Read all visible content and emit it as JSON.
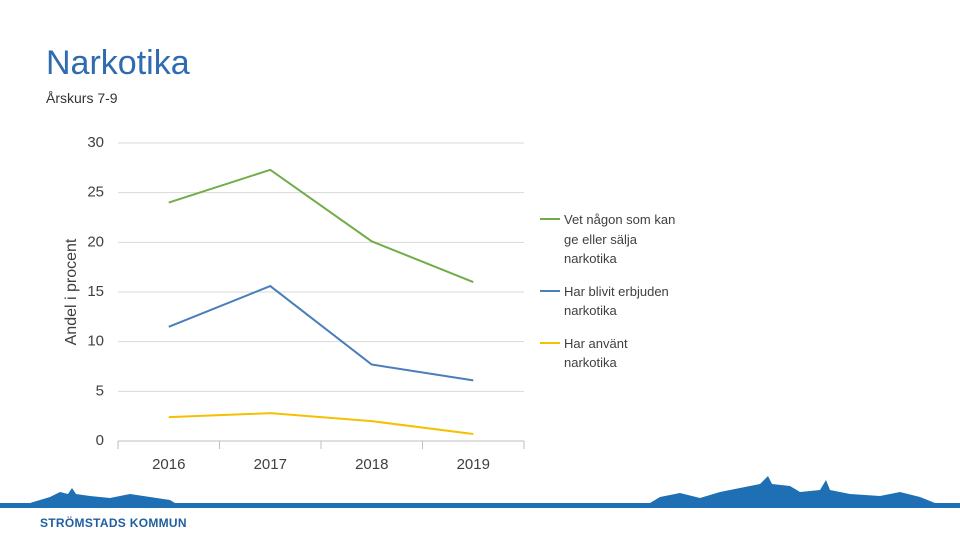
{
  "chart_data": {
    "type": "line",
    "title": "Narkotika",
    "subtitle": "Årskurs 7-9",
    "y_label": "Andel i procent",
    "categories": [
      "2016",
      "2017",
      "2018",
      "2019"
    ],
    "series": [
      {
        "name": "Vet någon som kan ge eller sälja narkotika",
        "color": "#70ad47",
        "values": [
          24.0,
          27.3,
          20.1,
          16.0
        ]
      },
      {
        "name": "Har blivit erbjuden narkotika",
        "color": "#4a7ebb",
        "values": [
          11.5,
          15.6,
          7.7,
          6.1
        ]
      },
      {
        "name": "Har använt narkotika",
        "color": "#f5c000",
        "values": [
          2.4,
          2.8,
          2.0,
          0.7
        ]
      }
    ],
    "ylim": [
      0,
      30
    ],
    "yticks": [
      0,
      5,
      10,
      15,
      20,
      25,
      30
    ],
    "grid": true,
    "legend": "right"
  },
  "footer": "STRÖMSTADS KOMMUN"
}
